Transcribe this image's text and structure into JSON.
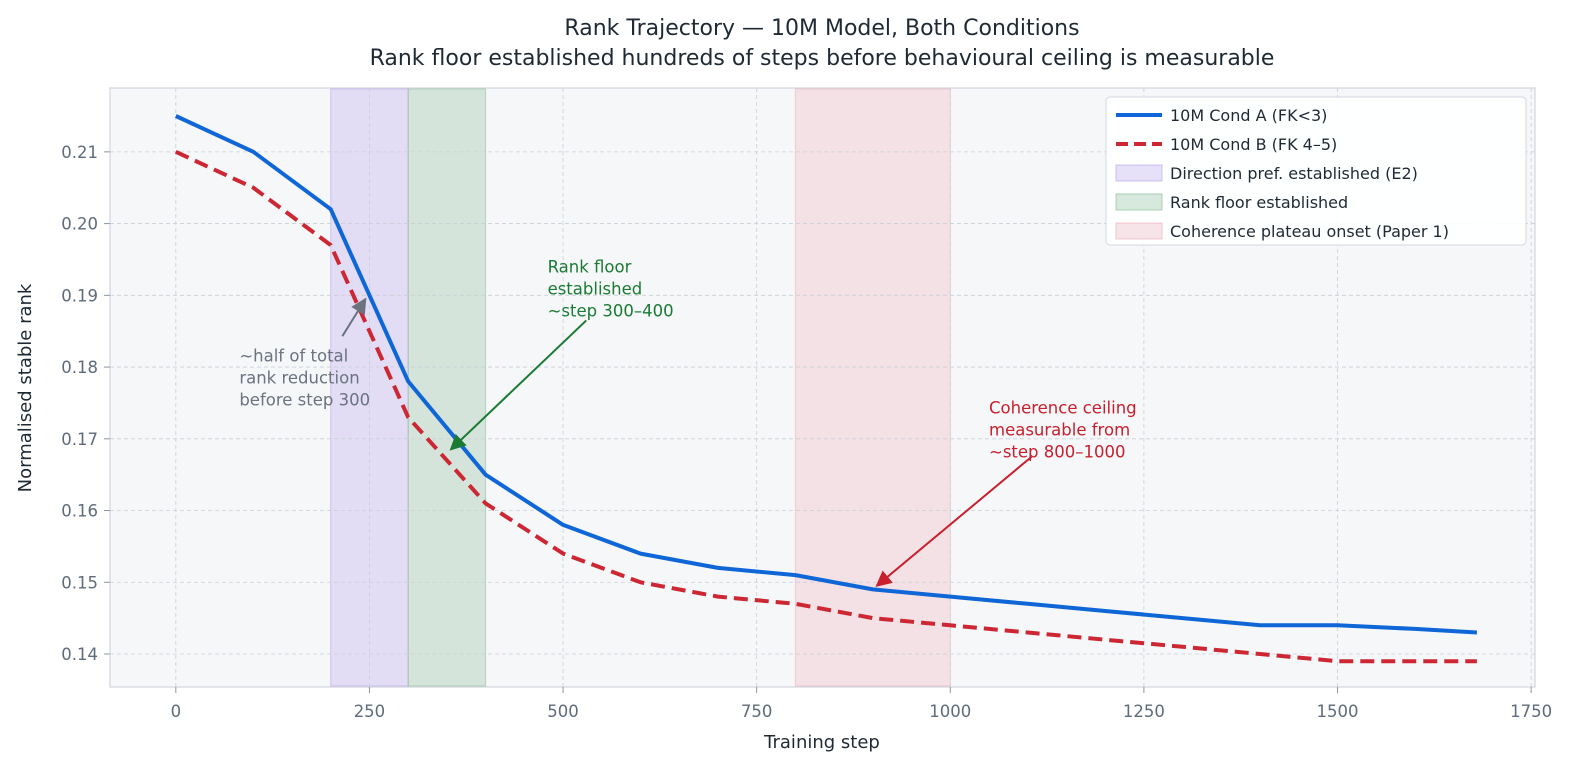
{
  "chart_data": {
    "type": "line",
    "title": "Rank Trajectory — 10M Model, Both Conditions",
    "subtitle": "Rank floor established hundreds of steps before behavioural ceiling is measurable",
    "xlabel": "Training step",
    "ylabel": "Normalised stable rank",
    "xlim": [
      -85,
      1755
    ],
    "ylim": [
      0.1354,
      0.2189
    ],
    "xticks": [
      0,
      250,
      500,
      750,
      1000,
      1250,
      1500,
      1750
    ],
    "yticks": [
      0.14,
      0.15,
      0.16,
      0.17,
      0.18,
      0.19,
      0.2,
      0.21
    ],
    "grid": true,
    "legend_position": "top-right",
    "series": [
      {
        "name": "10M Cond A (FK<3)",
        "color": "#0f66d6",
        "style": "solid",
        "x": [
          0,
          100,
          200,
          300,
          400,
          500,
          600,
          700,
          800,
          900,
          1000,
          1100,
          1200,
          1300,
          1400,
          1500,
          1600,
          1680
        ],
        "values": [
          0.215,
          0.21,
          0.202,
          0.178,
          0.165,
          0.158,
          0.154,
          0.152,
          0.151,
          0.149,
          0.148,
          0.147,
          0.146,
          0.145,
          0.144,
          0.144,
          0.1435,
          0.143
        ]
      },
      {
        "name": "10M Cond B (FK 4–5)",
        "color": "#cc2733",
        "style": "dashed",
        "x": [
          0,
          100,
          200,
          300,
          400,
          500,
          600,
          700,
          800,
          900,
          1000,
          1100,
          1200,
          1300,
          1400,
          1500,
          1600,
          1680
        ],
        "values": [
          0.21,
          0.205,
          0.197,
          0.173,
          0.161,
          0.154,
          0.15,
          0.148,
          0.147,
          0.145,
          0.144,
          0.143,
          0.142,
          0.141,
          0.14,
          0.139,
          0.139,
          0.139
        ]
      }
    ],
    "bands": [
      {
        "name": "Direction pref. established (E2)",
        "x0": 200,
        "x1": 300,
        "color": "#b9a8ec"
      },
      {
        "name": "Rank floor established",
        "x0": 300,
        "x1": 400,
        "color": "#8fbf9a"
      },
      {
        "name": "Coherence plateau onset (Paper 1)",
        "x0": 800,
        "x1": 1000,
        "color": "#ecb3be"
      }
    ],
    "annotations": [
      {
        "lines": [
          "~half of total",
          "rank reduction",
          "before step 300"
        ],
        "color": "#6b7280",
        "text_x": 82,
        "text_y": 0.1808,
        "arrow_from": [
          215,
          0.1843
        ],
        "arrow_to": [
          245,
          0.1895
        ]
      },
      {
        "lines": [
          "Rank floor",
          "established",
          "~step 300–400"
        ],
        "color": "#1b7a34",
        "text_x": 480,
        "text_y": 0.1932,
        "arrow_from": [
          530,
          0.1865
        ],
        "arrow_to": [
          355,
          0.1685
        ]
      },
      {
        "lines": [
          "Coherence ceiling",
          "measurable from",
          "~step 800–1000"
        ],
        "color": "#c8202e",
        "text_x": 1050,
        "text_y": 0.1735,
        "arrow_from": [
          1105,
          0.1675
        ],
        "arrow_to": [
          905,
          0.1495
        ]
      }
    ]
  }
}
